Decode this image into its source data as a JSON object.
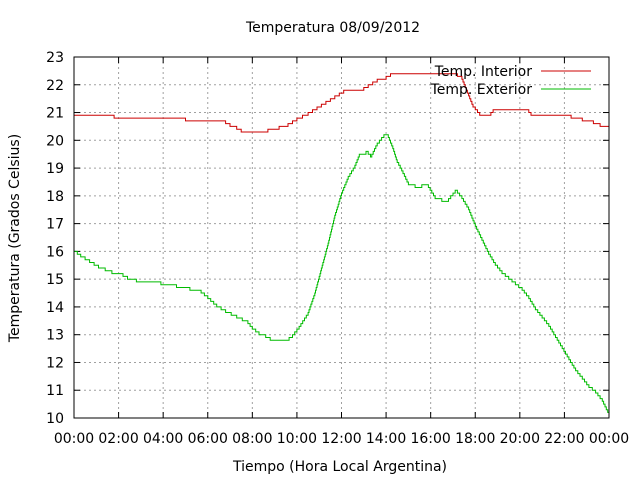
{
  "chart_data": {
    "type": "line",
    "title": "Temperatura 08/09/2012",
    "xlabel": "Tiempo (Hora Local Argentina)",
    "ylabel": "Temperatura (Grados Celsius)",
    "xlim": [
      0,
      24
    ],
    "ylim": [
      10,
      23
    ],
    "grid": true,
    "legend_position": "top-right",
    "x_ticks": [
      "00:00",
      "02:00",
      "04:00",
      "06:00",
      "08:00",
      "10:00",
      "12:00",
      "14:00",
      "16:00",
      "18:00",
      "20:00",
      "22:00",
      "00:00"
    ],
    "y_ticks": [
      "10",
      "11",
      "12",
      "13",
      "14",
      "15",
      "16",
      "17",
      "18",
      "19",
      "20",
      "21",
      "22",
      "23"
    ],
    "x_unit": "hours",
    "series": [
      {
        "name": "Temp. Interior",
        "color": "#cc0000",
        "points": [
          [
            0,
            20.9
          ],
          [
            1.7,
            20.9
          ],
          [
            1.8,
            20.8
          ],
          [
            4.9,
            20.8
          ],
          [
            5,
            20.7
          ],
          [
            6.6,
            20.7
          ],
          [
            7,
            20.5
          ],
          [
            7.3,
            20.4
          ],
          [
            7.5,
            20.3
          ],
          [
            8.3,
            20.3
          ],
          [
            8.7,
            20.4
          ],
          [
            9.2,
            20.5
          ],
          [
            9.6,
            20.6
          ],
          [
            10,
            20.8
          ],
          [
            10.5,
            21
          ],
          [
            10.9,
            21.2
          ],
          [
            11.3,
            21.4
          ],
          [
            11.7,
            21.6
          ],
          [
            12.1,
            21.8
          ],
          [
            12.8,
            21.8
          ],
          [
            13.2,
            22
          ],
          [
            13.6,
            22.2
          ],
          [
            14,
            22.3
          ],
          [
            14.2,
            22.4
          ],
          [
            16.5,
            22.4
          ],
          [
            17,
            22.35
          ],
          [
            17.4,
            22.2
          ],
          [
            17.6,
            21.8
          ],
          [
            17.9,
            21.2
          ],
          [
            18.2,
            20.9
          ],
          [
            18.6,
            20.9
          ],
          [
            18.8,
            21.1
          ],
          [
            20.3,
            21.1
          ],
          [
            20.5,
            20.9
          ],
          [
            22,
            20.9
          ],
          [
            22.3,
            20.8
          ],
          [
            22.8,
            20.7
          ],
          [
            23.3,
            20.6
          ],
          [
            23.6,
            20.5
          ],
          [
            24,
            20.5
          ]
        ]
      },
      {
        "name": "Temp. Exterior",
        "color": "#00bb00",
        "points": [
          [
            0,
            16
          ],
          [
            0.3,
            15.8
          ],
          [
            0.7,
            15.6
          ],
          [
            1.1,
            15.4
          ],
          [
            1.4,
            15.3
          ],
          [
            1.7,
            15.2
          ],
          [
            2.2,
            15.1
          ],
          [
            2.4,
            15
          ],
          [
            2.8,
            14.9
          ],
          [
            3.5,
            14.85
          ],
          [
            3.9,
            14.8
          ],
          [
            4.6,
            14.7
          ],
          [
            5,
            14.65
          ],
          [
            5.2,
            14.55
          ],
          [
            5.7,
            14.5
          ],
          [
            6,
            14.3
          ],
          [
            6.4,
            14
          ],
          [
            6.8,
            13.8
          ],
          [
            7.3,
            13.6
          ],
          [
            7.8,
            13.4
          ],
          [
            8,
            13.2
          ],
          [
            8.3,
            13
          ],
          [
            8.6,
            12.9
          ],
          [
            8.8,
            12.8
          ],
          [
            9.2,
            12.75
          ],
          [
            9.5,
            12.8
          ],
          [
            9.8,
            13
          ],
          [
            10.1,
            13.3
          ],
          [
            10.5,
            13.8
          ],
          [
            10.8,
            14.5
          ],
          [
            11.1,
            15.4
          ],
          [
            11.4,
            16.3
          ],
          [
            11.7,
            17.3
          ],
          [
            12,
            18.1
          ],
          [
            12.3,
            18.7
          ],
          [
            12.6,
            19.1
          ],
          [
            12.8,
            19.5
          ],
          [
            13.1,
            19.6
          ],
          [
            13.3,
            19.4
          ],
          [
            13.6,
            19.9
          ],
          [
            13.9,
            20.2
          ],
          [
            14.1,
            20.1
          ],
          [
            14.3,
            19.7
          ],
          [
            14.5,
            19.2
          ],
          [
            14.7,
            18.9
          ],
          [
            15,
            18.4
          ],
          [
            15.3,
            18.3
          ],
          [
            15.6,
            18.4
          ],
          [
            15.9,
            18.3
          ],
          [
            16.2,
            17.9
          ],
          [
            16.5,
            17.8
          ],
          [
            16.8,
            17.9
          ],
          [
            17.1,
            18.2
          ],
          [
            17.4,
            17.9
          ],
          [
            17.7,
            17.5
          ],
          [
            18,
            16.9
          ],
          [
            18.3,
            16.4
          ],
          [
            18.6,
            15.9
          ],
          [
            18.9,
            15.5
          ],
          [
            19.2,
            15.2
          ],
          [
            19.5,
            15
          ],
          [
            19.8,
            14.8
          ],
          [
            20.1,
            14.6
          ],
          [
            20.4,
            14.3
          ],
          [
            20.7,
            13.9
          ],
          [
            21,
            13.6
          ],
          [
            21.3,
            13.3
          ],
          [
            21.6,
            12.9
          ],
          [
            21.9,
            12.5
          ],
          [
            22.2,
            12.1
          ],
          [
            22.5,
            11.7
          ],
          [
            22.8,
            11.4
          ],
          [
            23.1,
            11.1
          ],
          [
            23.4,
            10.9
          ],
          [
            23.7,
            10.6
          ],
          [
            24,
            10.1
          ]
        ]
      }
    ]
  }
}
